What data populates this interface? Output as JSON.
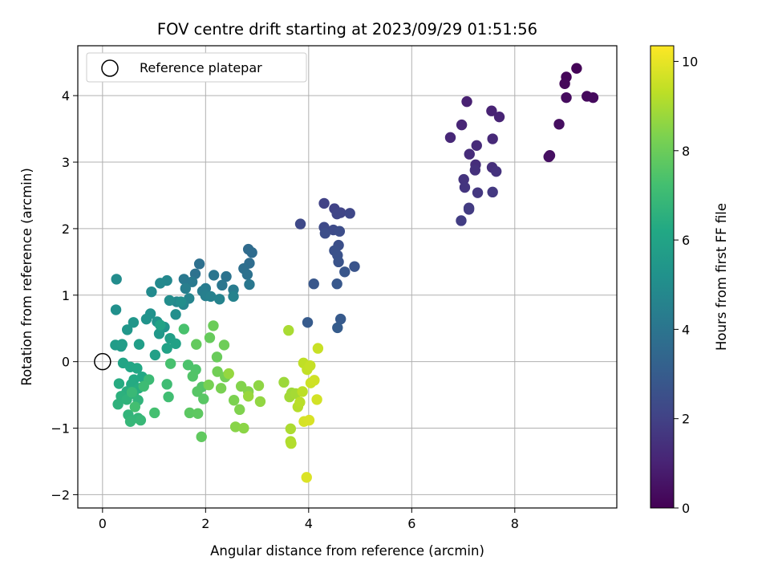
{
  "chart_data": {
    "type": "scatter",
    "title": "FOV centre drift starting at 2023/09/29 01:51:56",
    "xlabel": "Angular distance from reference (arcmin)",
    "ylabel": "Rotation from reference (arcmin)",
    "xlim": [
      -0.48,
      9.98
    ],
    "ylim": [
      -2.2,
      4.75
    ],
    "xticks": [
      "0",
      "2",
      "4",
      "6",
      "8"
    ],
    "yticks": [
      "−2",
      "−1",
      "0",
      "1",
      "2",
      "3",
      "4"
    ],
    "grid": true,
    "legend": {
      "position": "top-left",
      "entries": [
        "Reference platepar"
      ]
    },
    "reference_point": {
      "x": 0,
      "y": 0,
      "label": "Reference platepar"
    },
    "colorbar": {
      "label": "Hours from first FF file",
      "colormap": "viridis",
      "range": [
        0,
        10.35
      ],
      "ticks": [
        "0",
        "2",
        "4",
        "6",
        "8",
        "10"
      ]
    },
    "points": [
      [
        9.2,
        4.41,
        0.1
      ],
      [
        9.0,
        4.28,
        0.15
      ],
      [
        8.97,
        4.18,
        0.2
      ],
      [
        9.4,
        3.99,
        0.25
      ],
      [
        9.52,
        3.97,
        0.28
      ],
      [
        9.0,
        3.97,
        0.32
      ],
      [
        8.86,
        3.57,
        0.38
      ],
      [
        8.68,
        3.1,
        0.42
      ],
      [
        8.66,
        3.08,
        0.45
      ],
      [
        7.07,
        3.91,
        0.95
      ],
      [
        7.55,
        3.77,
        1.0
      ],
      [
        7.7,
        3.68,
        1.05
      ],
      [
        6.97,
        3.56,
        1.1
      ],
      [
        6.75,
        3.37,
        1.15
      ],
      [
        7.57,
        3.35,
        1.2
      ],
      [
        7.26,
        3.25,
        1.25
      ],
      [
        7.12,
        3.12,
        1.3
      ],
      [
        7.24,
        2.96,
        1.35
      ],
      [
        7.56,
        2.92,
        1.4
      ],
      [
        7.23,
        2.88,
        1.45
      ],
      [
        7.64,
        2.86,
        1.5
      ],
      [
        7.01,
        2.74,
        1.55
      ],
      [
        7.03,
        2.62,
        1.6
      ],
      [
        7.28,
        2.54,
        1.65
      ],
      [
        7.57,
        2.55,
        1.7
      ],
      [
        7.11,
        2.31,
        1.75
      ],
      [
        7.11,
        2.29,
        1.8
      ],
      [
        6.96,
        2.12,
        1.85
      ],
      [
        4.3,
        2.38,
        2.0
      ],
      [
        4.5,
        2.3,
        2.05
      ],
      [
        4.62,
        2.24,
        2.1
      ],
      [
        4.55,
        2.22,
        2.15
      ],
      [
        4.8,
        2.23,
        2.2
      ],
      [
        3.84,
        2.07,
        2.25
      ],
      [
        4.3,
        2.02,
        2.3
      ],
      [
        4.48,
        1.98,
        2.35
      ],
      [
        4.6,
        1.96,
        2.4
      ],
      [
        4.32,
        1.93,
        2.45
      ],
      [
        4.58,
        1.75,
        2.5
      ],
      [
        4.5,
        1.67,
        2.55
      ],
      [
        4.56,
        1.6,
        2.6
      ],
      [
        4.58,
        1.5,
        2.65
      ],
      [
        4.89,
        1.43,
        2.7
      ],
      [
        4.7,
        1.35,
        2.75
      ],
      [
        4.1,
        1.17,
        2.8
      ],
      [
        4.55,
        1.17,
        2.85
      ],
      [
        4.62,
        0.64,
        2.9
      ],
      [
        3.98,
        0.59,
        2.95
      ],
      [
        4.56,
        0.51,
        3.0
      ],
      [
        2.83,
        1.69,
        3.6
      ],
      [
        2.9,
        1.64,
        3.65
      ],
      [
        2.85,
        1.48,
        3.7
      ],
      [
        2.74,
        1.4,
        3.75
      ],
      [
        1.88,
        1.47,
        3.8
      ],
      [
        2.81,
        1.31,
        3.85
      ],
      [
        1.8,
        1.32,
        3.9
      ],
      [
        2.4,
        1.28,
        3.95
      ],
      [
        2.16,
        1.3,
        4.0
      ],
      [
        2.32,
        1.15,
        4.05
      ],
      [
        2.85,
        1.16,
        4.1
      ],
      [
        1.58,
        1.24,
        4.15
      ],
      [
        1.74,
        1.2,
        4.2
      ],
      [
        2.0,
        1.1,
        4.25
      ],
      [
        2.54,
        1.08,
        4.3
      ],
      [
        1.94,
        1.06,
        4.35
      ],
      [
        1.61,
        1.1,
        4.4
      ],
      [
        2.0,
        0.99,
        4.45
      ],
      [
        2.1,
        0.98,
        4.5
      ],
      [
        2.54,
        0.98,
        4.55
      ],
      [
        2.27,
        0.94,
        4.6
      ],
      [
        1.68,
        0.95,
        4.65
      ],
      [
        1.44,
        0.9,
        4.7
      ],
      [
        1.57,
        0.86,
        4.75
      ],
      [
        1.25,
        1.22,
        4.8
      ],
      [
        1.12,
        1.18,
        4.85
      ],
      [
        0.95,
        1.05,
        4.9
      ],
      [
        0.27,
        1.24,
        4.95
      ],
      [
        1.3,
        0.92,
        5.0
      ],
      [
        1.52,
        0.9,
        5.05
      ],
      [
        1.42,
        0.71,
        5.1
      ],
      [
        0.26,
        0.78,
        5.15
      ],
      [
        0.93,
        0.72,
        5.2
      ],
      [
        0.85,
        0.64,
        5.25
      ],
      [
        1.06,
        0.6,
        5.3
      ],
      [
        1.2,
        0.52,
        5.35
      ],
      [
        0.6,
        0.59,
        5.4
      ],
      [
        0.48,
        0.48,
        5.45
      ],
      [
        1.1,
        0.42,
        5.5
      ],
      [
        0.36,
        0.23,
        5.6
      ],
      [
        0.25,
        0.25,
        5.65
      ],
      [
        0.38,
        0.26,
        5.7
      ],
      [
        0.71,
        0.26,
        5.75
      ],
      [
        1.31,
        0.35,
        5.8
      ],
      [
        1.02,
        0.1,
        5.85
      ],
      [
        1.42,
        0.27,
        5.9
      ],
      [
        1.25,
        0.2,
        5.95
      ],
      [
        1.12,
        0.55,
        6.0
      ],
      [
        0.4,
        -0.02,
        6.05
      ],
      [
        0.54,
        -0.08,
        6.1
      ],
      [
        0.67,
        -0.1,
        6.15
      ],
      [
        0.77,
        -0.23,
        6.2
      ],
      [
        0.61,
        -0.27,
        6.25
      ],
      [
        0.56,
        -0.34,
        6.3
      ],
      [
        0.32,
        -0.33,
        6.35
      ],
      [
        0.7,
        -0.4,
        6.4
      ],
      [
        0.47,
        -0.45,
        6.45
      ],
      [
        0.6,
        -0.48,
        6.5
      ],
      [
        0.36,
        -0.52,
        6.55
      ],
      [
        0.3,
        -0.64,
        6.6
      ],
      [
        0.47,
        -0.57,
        6.65
      ],
      [
        0.69,
        -0.58,
        6.7
      ],
      [
        0.5,
        -0.8,
        6.75
      ],
      [
        0.69,
        -0.85,
        6.8
      ],
      [
        0.54,
        -0.9,
        6.85
      ],
      [
        0.74,
        -0.88,
        6.9
      ],
      [
        0.57,
        -0.46,
        6.95
      ],
      [
        0.9,
        -0.27,
        7.0
      ],
      [
        0.8,
        -0.37,
        7.05
      ],
      [
        1.25,
        -0.34,
        7.1
      ],
      [
        1.28,
        -0.53,
        7.15
      ],
      [
        0.63,
        -0.68,
        7.2
      ],
      [
        1.01,
        -0.77,
        7.25
      ],
      [
        1.32,
        -0.03,
        7.3
      ],
      [
        1.58,
        0.49,
        7.35
      ],
      [
        1.66,
        -0.05,
        7.4
      ],
      [
        1.81,
        -0.12,
        7.45
      ],
      [
        1.75,
        -0.22,
        7.5
      ],
      [
        1.93,
        -0.38,
        7.55
      ],
      [
        1.84,
        -0.45,
        7.6
      ],
      [
        1.96,
        -0.56,
        7.65
      ],
      [
        1.69,
        -0.77,
        7.7
      ],
      [
        1.85,
        -0.78,
        7.75
      ],
      [
        1.92,
        -1.13,
        7.8
      ],
      [
        1.82,
        0.26,
        7.85
      ],
      [
        2.08,
        0.36,
        7.9
      ],
      [
        2.22,
        0.07,
        7.95
      ],
      [
        2.15,
        0.54,
        8.0
      ],
      [
        2.36,
        0.25,
        8.05
      ],
      [
        2.23,
        -0.15,
        8.1
      ],
      [
        2.38,
        -0.23,
        8.15
      ],
      [
        2.06,
        -0.35,
        8.2
      ],
      [
        2.3,
        -0.4,
        8.25
      ],
      [
        2.55,
        -0.58,
        8.3
      ],
      [
        2.66,
        -0.72,
        8.35
      ],
      [
        2.69,
        -0.37,
        8.4
      ],
      [
        2.83,
        -0.45,
        8.45
      ],
      [
        2.58,
        -0.98,
        8.5
      ],
      [
        2.74,
        -1.0,
        8.55
      ],
      [
        3.03,
        -0.36,
        8.6
      ],
      [
        3.06,
        -0.6,
        8.65
      ],
      [
        2.45,
        -0.18,
        8.7
      ],
      [
        2.83,
        -0.52,
        8.75
      ],
      [
        3.52,
        -0.31,
        8.8
      ],
      [
        3.67,
        -0.47,
        8.85
      ],
      [
        3.63,
        -0.53,
        8.9
      ],
      [
        3.75,
        -0.48,
        8.95
      ],
      [
        3.61,
        0.47,
        9.0
      ],
      [
        3.65,
        -1.01,
        9.05
      ],
      [
        3.65,
        -1.2,
        9.1
      ],
      [
        3.66,
        -1.23,
        9.15
      ],
      [
        3.79,
        -0.68,
        9.2
      ],
      [
        3.83,
        -0.61,
        9.25
      ],
      [
        3.88,
        -0.45,
        9.3
      ],
      [
        3.9,
        -0.02,
        9.35
      ],
      [
        3.97,
        -0.12,
        9.4
      ],
      [
        4.03,
        -0.06,
        9.45
      ],
      [
        4.18,
        0.2,
        9.5
      ],
      [
        4.04,
        -0.32,
        9.55
      ],
      [
        4.11,
        -0.28,
        9.6
      ],
      [
        4.16,
        -0.57,
        9.65
      ],
      [
        3.91,
        -0.9,
        9.7
      ],
      [
        4.01,
        -0.88,
        9.75
      ],
      [
        3.96,
        -1.74,
        9.8
      ]
    ]
  }
}
